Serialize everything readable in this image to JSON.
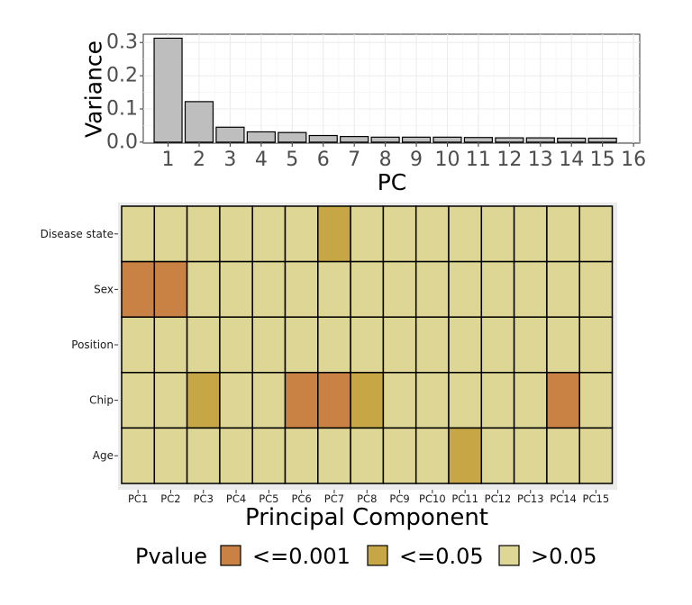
{
  "chart_data": [
    {
      "type": "bar",
      "xlabel": "PC",
      "ylabel": "Variance",
      "categories": [
        1,
        2,
        3,
        4,
        5,
        6,
        7,
        8,
        9,
        10,
        11,
        12,
        13,
        14,
        15
      ],
      "x_ticks": [
        "1",
        "2",
        "3",
        "4",
        "5",
        "6",
        "7",
        "8",
        "9",
        "10",
        "11",
        "12",
        "13",
        "14",
        "15",
        "16"
      ],
      "values": [
        0.313,
        0.122,
        0.045,
        0.031,
        0.029,
        0.02,
        0.017,
        0.015,
        0.015,
        0.015,
        0.014,
        0.013,
        0.013,
        0.012,
        0.012
      ],
      "ylim": [
        -0.003,
        0.325
      ],
      "xlim": [
        0.2,
        16.2
      ],
      "y_ticks": [
        {
          "value": 0.0,
          "label": "0.0"
        },
        {
          "value": 0.1,
          "label": "0.1"
        },
        {
          "value": 0.2,
          "label": "0.2"
        },
        {
          "value": 0.3,
          "label": "0.3"
        }
      ],
      "grid": true,
      "bar_color": "#bebebe",
      "bar_edge": "#000000"
    },
    {
      "type": "heatmap",
      "xlabel": "Principal Component",
      "ylabel": "",
      "x_categories": [
        "PC1",
        "PC2",
        "PC3",
        "PC4",
        "PC5",
        "PC6",
        "PC7",
        "PC8",
        "PC9",
        "PC10",
        "PC11",
        "PC12",
        "PC13",
        "PC14",
        "PC15"
      ],
      "y_categories": [
        "Disease state",
        "Sex",
        "Position",
        "Chip",
        "Age"
      ],
      "values": [
        [
          ">0.05",
          ">0.05",
          ">0.05",
          ">0.05",
          ">0.05",
          ">0.05",
          "<=0.05",
          ">0.05",
          ">0.05",
          ">0.05",
          ">0.05",
          ">0.05",
          ">0.05",
          ">0.05",
          ">0.05"
        ],
        [
          "<=0.001",
          "<=0.001",
          ">0.05",
          ">0.05",
          ">0.05",
          ">0.05",
          ">0.05",
          ">0.05",
          ">0.05",
          ">0.05",
          ">0.05",
          ">0.05",
          ">0.05",
          ">0.05",
          ">0.05"
        ],
        [
          ">0.05",
          ">0.05",
          ">0.05",
          ">0.05",
          ">0.05",
          ">0.05",
          ">0.05",
          ">0.05",
          ">0.05",
          ">0.05",
          ">0.05",
          ">0.05",
          ">0.05",
          ">0.05",
          ">0.05"
        ],
        [
          ">0.05",
          ">0.05",
          "<=0.05",
          ">0.05",
          ">0.05",
          "<=0.001",
          "<=0.001",
          "<=0.05",
          ">0.05",
          ">0.05",
          ">0.05",
          ">0.05",
          ">0.05",
          "<=0.001",
          ">0.05"
        ],
        [
          ">0.05",
          ">0.05",
          ">0.05",
          ">0.05",
          ">0.05",
          ">0.05",
          ">0.05",
          ">0.05",
          ">0.05",
          ">0.05",
          "<=0.05",
          ">0.05",
          ">0.05",
          ">0.05",
          ">0.05"
        ]
      ],
      "legend": {
        "title": "Pvalue",
        "position": "bottom",
        "entries": [
          {
            "label": "<=0.001",
            "color": "#c98244"
          },
          {
            "label": "<=0.05",
            "color": "#c7a645"
          },
          {
            "label": ">0.05",
            "color": "#ded695"
          }
        ]
      },
      "panel_background": "#ebebeb"
    }
  ]
}
